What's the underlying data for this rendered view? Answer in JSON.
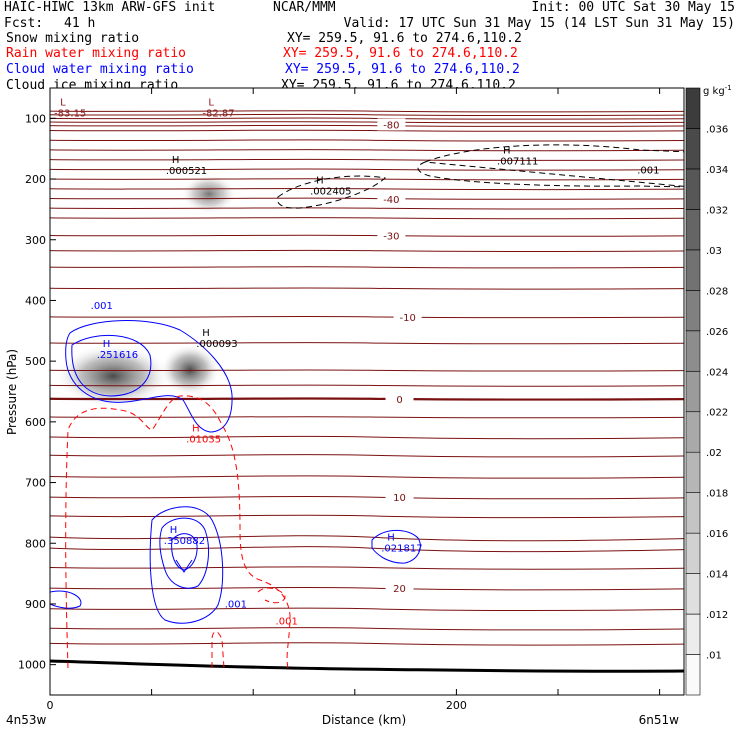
{
  "header": {
    "model": "HAIC-HIWC 13km ARW-GFS init",
    "org": "NCAR/MMM",
    "init": "Init: 00 UTC Sat 30 May 15",
    "fcst_label": "Fcst:",
    "fcst_value": "41 h",
    "valid": "Valid: 17 UTC Sun 31 May 15 (14 LST Sun 31 May 15)",
    "fields": [
      {
        "name": "Snow mixing ratio",
        "xy": "XY= 259.5, 91.6 to 274.6,110.2",
        "color": "#000000"
      },
      {
        "name": "Rain water mixing ratio",
        "xy": "XY= 259.5, 91.6 to 274.6,110.2",
        "color": "#ff0000"
      },
      {
        "name": "Cloud water mixing ratio",
        "xy": "XY= 259.5, 91.6 to 274.6,110.2",
        "color": "#0000ff"
      },
      {
        "name": "Cloud ice mixing ratio",
        "xy": "XY= 259.5, 91.6 to 274.6,110.2",
        "color": "#000000"
      }
    ]
  },
  "chart_data": {
    "type": "contour",
    "xlabel": "Distance (km)",
    "ylabel": "Pressure (hPa)",
    "xlim": [
      0,
      312
    ],
    "ylim": [
      1050,
      50
    ],
    "x_ticks": [
      0,
      50,
      100,
      150,
      200,
      250,
      300
    ],
    "x_tick_labels": [
      "0",
      "",
      "",
      "",
      "200",
      "",
      ""
    ],
    "y_ticks": [
      100,
      200,
      300,
      400,
      500,
      600,
      700,
      800,
      900,
      1000
    ],
    "x_end_labels": {
      "left": "4n53w",
      "right": "6n51w"
    },
    "colorbar": {
      "unit": "g kg",
      "unit_exp": "-1",
      "levels": [
        ".01",
        ".012",
        ".014",
        ".016",
        ".018",
        ".02",
        ".022",
        ".024",
        ".026",
        ".028",
        ".03",
        ".032",
        ".034",
        ".036"
      ]
    },
    "temperature_contours": [
      {
        "label": "-80",
        "p": 110,
        "x": 168
      },
      {
        "label": "-40",
        "p": 233,
        "x": 168
      },
      {
        "label": "-30",
        "p": 293,
        "x": 168
      },
      {
        "label": "-10",
        "p": 427,
        "x": 176
      },
      {
        "label": "0",
        "p": 562,
        "x": 172
      },
      {
        "label": "10",
        "p": 724,
        "x": 172
      },
      {
        "label": "20",
        "p": 874,
        "x": 172
      }
    ],
    "extrema": [
      {
        "kind": "L",
        "value": "-83.15",
        "x": 2,
        "p": 82,
        "color": "#8b1a1a"
      },
      {
        "kind": "L",
        "value": "-82.87",
        "x": 75,
        "p": 82,
        "color": "#8b1a1a"
      },
      {
        "kind": "H",
        "value": ".000521",
        "x": 57,
        "p": 177,
        "color": "#000000"
      },
      {
        "kind": "H",
        "value": ".002405",
        "x": 128,
        "p": 211,
        "color": "#000000"
      },
      {
        "kind": "H",
        "value": ".007111",
        "x": 220,
        "p": 161,
        "color": "#000000"
      },
      {
        "kind": "H",
        "value": ".000093",
        "x": 72,
        "p": 462,
        "color": "#000000"
      },
      {
        "kind": "H",
        "value": ".251616",
        "x": 23,
        "p": 480,
        "color": "#0000ff"
      },
      {
        "kind": "H",
        "value": ".01035",
        "x": 67,
        "p": 619,
        "color": "#ff0000"
      },
      {
        "kind": "H",
        "value": ".350882",
        "x": 56,
        "p": 786,
        "color": "#0000ff"
      },
      {
        "kind": "H",
        "value": ".021817",
        "x": 163,
        "p": 799,
        "color": "#0000ff"
      }
    ],
    "contour_labels": [
      {
        "text": ".001",
        "x": 20,
        "p": 414,
        "color": "#0000ff"
      },
      {
        "text": ".001",
        "x": 86,
        "p": 906,
        "color": "#0000ff"
      },
      {
        "text": ".001",
        "x": 111,
        "p": 934,
        "color": "#ff0000"
      },
      {
        "text": ".001",
        "x": 289,
        "p": 191,
        "color": "#000000"
      }
    ]
  }
}
